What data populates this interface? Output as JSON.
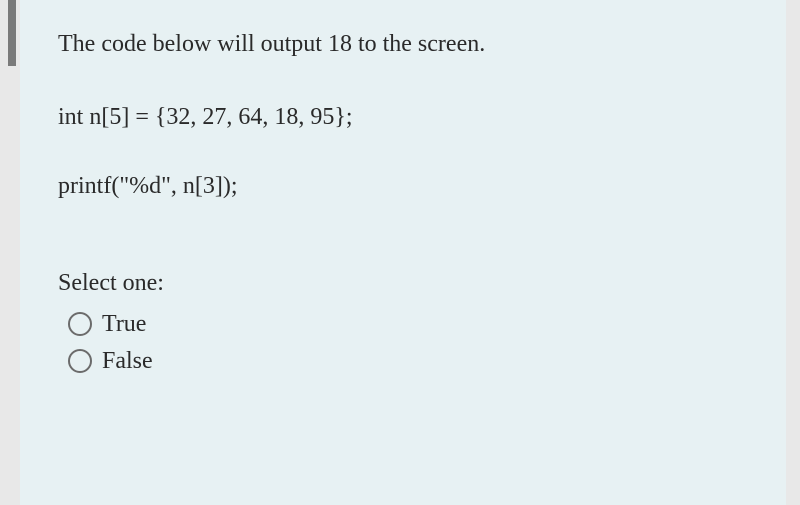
{
  "question": {
    "prompt": "The code below will output 18 to the screen.",
    "code_line_1": "int n[5] = {32, 27, 64, 18, 95};",
    "code_line_2": "printf(\"%d\", n[3]);",
    "select_label": "Select one:",
    "options": {
      "true_label": "True",
      "false_label": "False"
    }
  },
  "styling": {
    "background_color": "#e7f1f3",
    "outer_background": "#e8e8e8",
    "marker_color": "#7a7a7a",
    "text_color": "#2a2a2a",
    "radio_border_color": "#6b6b6b",
    "font_family": "Georgia, serif",
    "font_size_base": 24
  }
}
